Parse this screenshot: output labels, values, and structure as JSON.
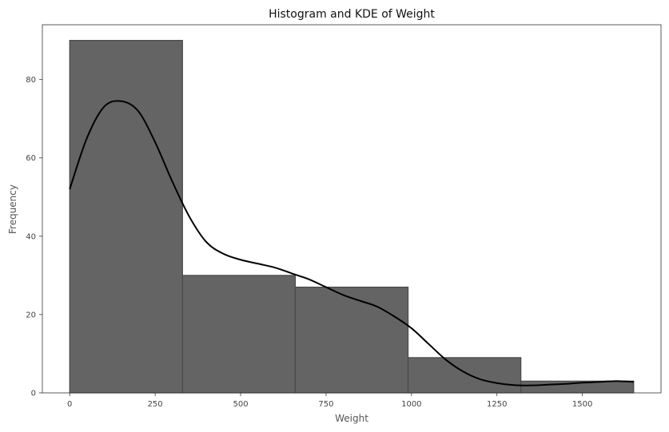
{
  "chart_data": {
    "type": "bar",
    "title": "Histogram and KDE of Weight",
    "xlabel": "Weight",
    "ylabel": "Frequency",
    "xlim": [
      -80,
      1730
    ],
    "ylim": [
      0,
      94
    ],
    "xticks": [
      0,
      250,
      500,
      750,
      1000,
      1250,
      1500
    ],
    "yticks": [
      0,
      20,
      40,
      60,
      80
    ],
    "grid": false,
    "bins": [
      {
        "x0": 0,
        "x1": 330,
        "count": 90
      },
      {
        "x0": 330,
        "x1": 660,
        "count": 30
      },
      {
        "x0": 660,
        "x1": 990,
        "count": 27
      },
      {
        "x0": 990,
        "x1": 1320,
        "count": 9
      },
      {
        "x0": 1320,
        "x1": 1650,
        "count": 3
      }
    ],
    "kde": {
      "x": [
        0,
        50,
        100,
        150,
        200,
        250,
        300,
        350,
        400,
        450,
        500,
        550,
        600,
        650,
        700,
        750,
        800,
        850,
        900,
        950,
        1000,
        1050,
        1100,
        1150,
        1200,
        1250,
        1300,
        1350,
        1400,
        1450,
        1500,
        1550,
        1600,
        1650
      ],
      "y": [
        52,
        65,
        73,
        74.5,
        72,
        64,
        54,
        45,
        38.5,
        35.5,
        34,
        33,
        32,
        30.5,
        29,
        27,
        25,
        23.5,
        22,
        19.5,
        16.5,
        12.5,
        8.5,
        5.5,
        3.5,
        2.5,
        2,
        1.9,
        2.1,
        2.3,
        2.6,
        2.8,
        3,
        2.8
      ]
    }
  }
}
